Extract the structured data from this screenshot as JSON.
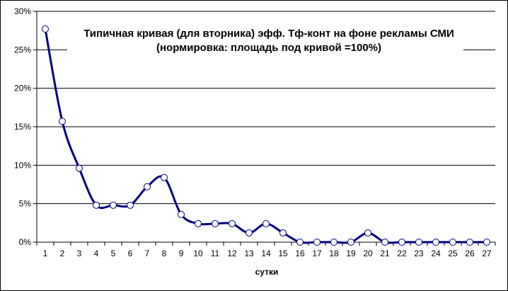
{
  "chart_data": {
    "type": "line",
    "title_line1": "Типичная кривая (для вторника) эфф. Тф-конт на фоне рекламы СМИ",
    "title_line2": "(нормировка: площадь под кривой =100%)",
    "xlabel": "сутки",
    "ylabel": "",
    "ylim": [
      0,
      30
    ],
    "y_ticks": [
      "0%",
      "5%",
      "10%",
      "15%",
      "20%",
      "25%",
      "30%"
    ],
    "grid": true,
    "legend": "none",
    "x": [
      1,
      2,
      3,
      4,
      5,
      6,
      7,
      8,
      9,
      10,
      11,
      12,
      13,
      14,
      15,
      16,
      17,
      18,
      19,
      20,
      21,
      22,
      23,
      24,
      25,
      26,
      27
    ],
    "series": [
      {
        "values": [
          27.7,
          15.7,
          9.6,
          4.8,
          4.8,
          4.8,
          7.2,
          8.4,
          3.6,
          2.4,
          2.4,
          2.4,
          1.2,
          2.4,
          1.2,
          0,
          0,
          0,
          0,
          1.2,
          0,
          0,
          0,
          0,
          0,
          0,
          0
        ],
        "color": "#000080"
      }
    ]
  }
}
